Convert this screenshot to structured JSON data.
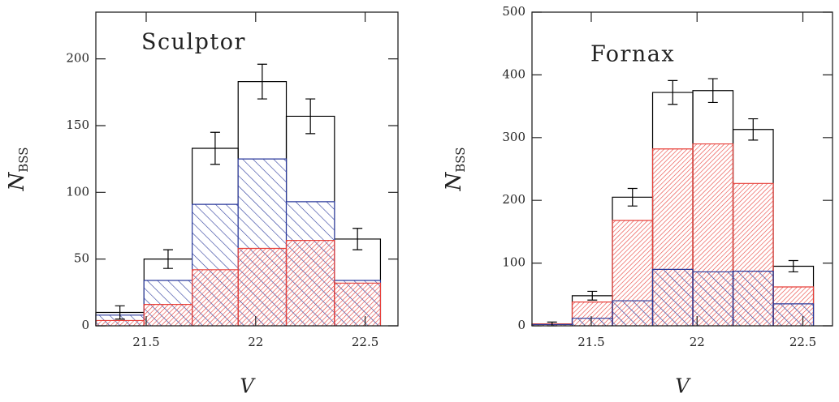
{
  "chart_data": [
    {
      "type": "histogram",
      "annotation": "Sculptor",
      "xlabel": "V",
      "ylabel": "N",
      "ylabel_subscript": "BSS",
      "bins": [
        21.27,
        21.49,
        21.71,
        21.92,
        22.14,
        22.36,
        22.57
      ],
      "xlim": [
        21.27,
        22.65
      ],
      "ylim": [
        0,
        235
      ],
      "xticks": [
        21.5,
        22,
        22.5
      ],
      "yticks": [
        0,
        50,
        100,
        150,
        200
      ],
      "series": [
        {
          "color": "#000000",
          "values": [
            10,
            50,
            133,
            183,
            157,
            65
          ],
          "errors": [
            5,
            7,
            12,
            13,
            13,
            8
          ]
        },
        {
          "color": "#2b3a9c",
          "values": [
            8,
            34,
            91,
            125,
            93,
            34
          ],
          "hatch": "backslash",
          "opaque": true
        },
        {
          "color": "#e8403a",
          "values": [
            4,
            16,
            42,
            58,
            64,
            32
          ],
          "hatch": "slash",
          "opaque": false
        }
      ]
    },
    {
      "type": "histogram",
      "annotation": "Fornax",
      "xlabel": "V",
      "ylabel": "N",
      "ylabel_subscript": "BSS",
      "bins": [
        21.22,
        21.41,
        21.6,
        21.79,
        21.98,
        22.17,
        22.36,
        22.55
      ],
      "xlim": [
        21.22,
        22.64
      ],
      "ylim": [
        0,
        500
      ],
      "xticks": [
        21.5,
        22,
        22.5
      ],
      "yticks": [
        0,
        100,
        200,
        300,
        400,
        500
      ],
      "series": [
        {
          "color": "#000000",
          "values": [
            3,
            48,
            205,
            372,
            375,
            313,
            95
          ],
          "errors": [
            3,
            7,
            14,
            19,
            19,
            17,
            9
          ]
        },
        {
          "color": "#e8403a",
          "values": [
            3,
            38,
            168,
            282,
            290,
            227,
            62
          ],
          "hatch": "slash",
          "opaque": false
        },
        {
          "color": "#2b3a9c",
          "values": [
            2,
            12,
            40,
            90,
            86,
            87,
            35
          ],
          "hatch": "backslash",
          "opaque": false
        }
      ]
    }
  ]
}
